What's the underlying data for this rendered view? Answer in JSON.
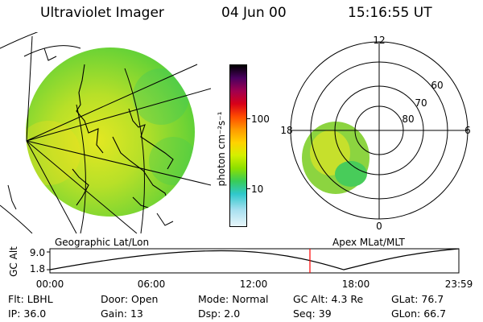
{
  "header": {
    "title": "Ultraviolet Imager",
    "date": "04 Jun 00",
    "time": "15:16:55 UT"
  },
  "left_panel": {
    "caption": "Geographic Lat/Lon"
  },
  "colorbar": {
    "label": "photon cm⁻²s⁻¹",
    "tick_labels": [
      "100",
      "10"
    ],
    "colors": [
      "#000000",
      "#6a005a",
      "#c00020",
      "#ff2a00",
      "#ff9a00",
      "#ffd200",
      "#d4f000",
      "#8ce000",
      "#38cc58",
      "#30c8cc",
      "#a8e0f0",
      "#e8f6fa"
    ]
  },
  "polar_plot": {
    "caption": "Apex MLat/MLT",
    "hour_labels": [
      "12",
      "18",
      "6",
      "0"
    ],
    "lat_labels": [
      "60",
      "70",
      "80"
    ]
  },
  "altitude_plot": {
    "ylabel": "GC Alt",
    "ytick_labels": [
      "9.0",
      "1.8"
    ],
    "xtick_labels": [
      "00:00",
      "06:00",
      "12:00",
      "18:00",
      "23:59"
    ],
    "marker_time": "15:16:55",
    "marker_color": "#ff0000"
  },
  "info": {
    "row1": [
      {
        "key": "Flt:",
        "value": "LBHL"
      },
      {
        "key": "Door:",
        "value": "Open"
      },
      {
        "key": "Mode:",
        "value": "Normal"
      },
      {
        "key": "GC Alt:",
        "value": "4.3 Re"
      },
      {
        "key": "GLat:",
        "value": "76.7"
      }
    ],
    "row2": [
      {
        "key": "IP:",
        "value": "36.0"
      },
      {
        "key": "Gain:",
        "value": "13"
      },
      {
        "key": "Dsp:",
        "value": "2.0"
      },
      {
        "key": "Seq:",
        "value": "39"
      },
      {
        "key": "GLon:",
        "value": "66.7"
      }
    ]
  }
}
